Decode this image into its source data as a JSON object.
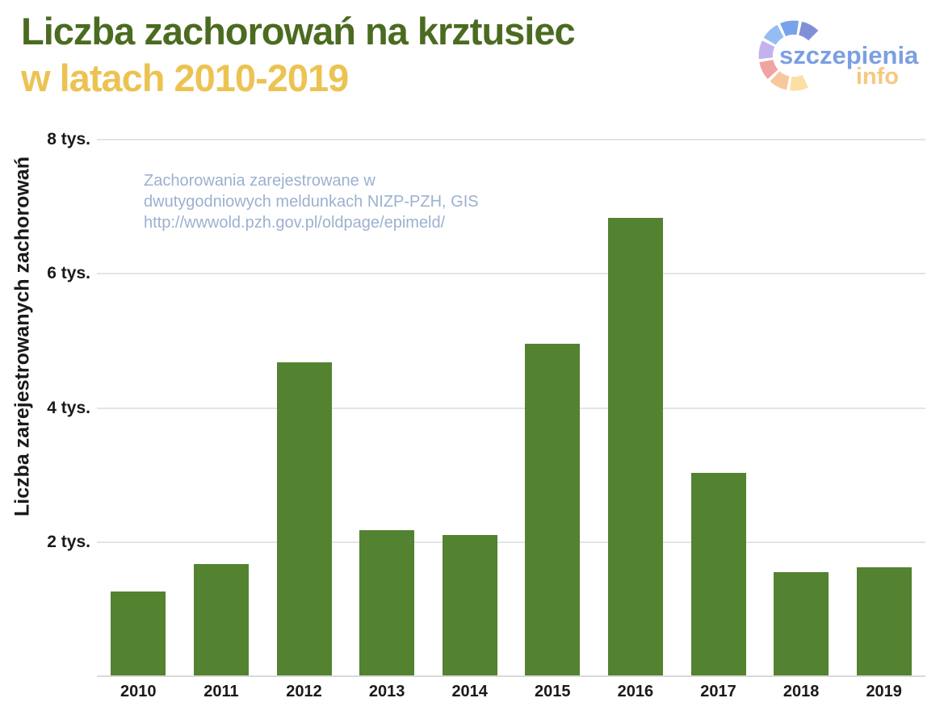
{
  "header": {
    "title_line1": "Liczba zachorowań na krztusiec",
    "title_line2": "w latach 2010-2019"
  },
  "logo": {
    "text_primary": "szczepienia",
    "text_secondary": "info",
    "ring_segment_colors": [
      "#8190d6",
      "#78a3ea",
      "#94bdf4",
      "#c4b2ef",
      "#f1a3a2",
      "#f8c79e",
      "#fbdfa3"
    ]
  },
  "annotation": {
    "line1": "Zachorowania zarejestrowane w",
    "line2": "dwutygodniowych meldunkach NIZP-PZH, GIS",
    "line3": "http://wwwold.pzh.gov.pl/oldpage/epimeld/"
  },
  "chart_data": {
    "type": "bar",
    "title": "Liczba zachorowań na krztusiec w latach 2010-2019",
    "categories": [
      "2010",
      "2011",
      "2012",
      "2013",
      "2014",
      "2015",
      "2016",
      "2017",
      "2018",
      "2019"
    ],
    "values": [
      1266,
      1669,
      4684,
      2182,
      2102,
      4956,
      6828,
      3034,
      1552,
      1629
    ],
    "xlabel": "",
    "ylabel": "Liczba zarejestrowanych zachorowań",
    "ylim": [
      0,
      8000
    ],
    "yticks": [
      {
        "value": 2000,
        "label": "2 tys."
      },
      {
        "value": 4000,
        "label": "4 tys."
      },
      {
        "value": 6000,
        "label": "6 tys."
      },
      {
        "value": 8000,
        "label": "8 tys."
      }
    ],
    "grid": "horizontal-only",
    "legend": "none",
    "bar_color": "#538230"
  },
  "colors": {
    "title_green": "#4b6b20",
    "title_yellow": "#ecc353",
    "bar_green": "#538230",
    "gridline": "#e4e4e4",
    "axis_line": "#d9d9d9",
    "annotation_text": "#9cb1cf",
    "logo_text_blue": "#7b9fe2",
    "logo_text_orange": "#f7c87e",
    "axis_text": "#1a1a1a"
  }
}
